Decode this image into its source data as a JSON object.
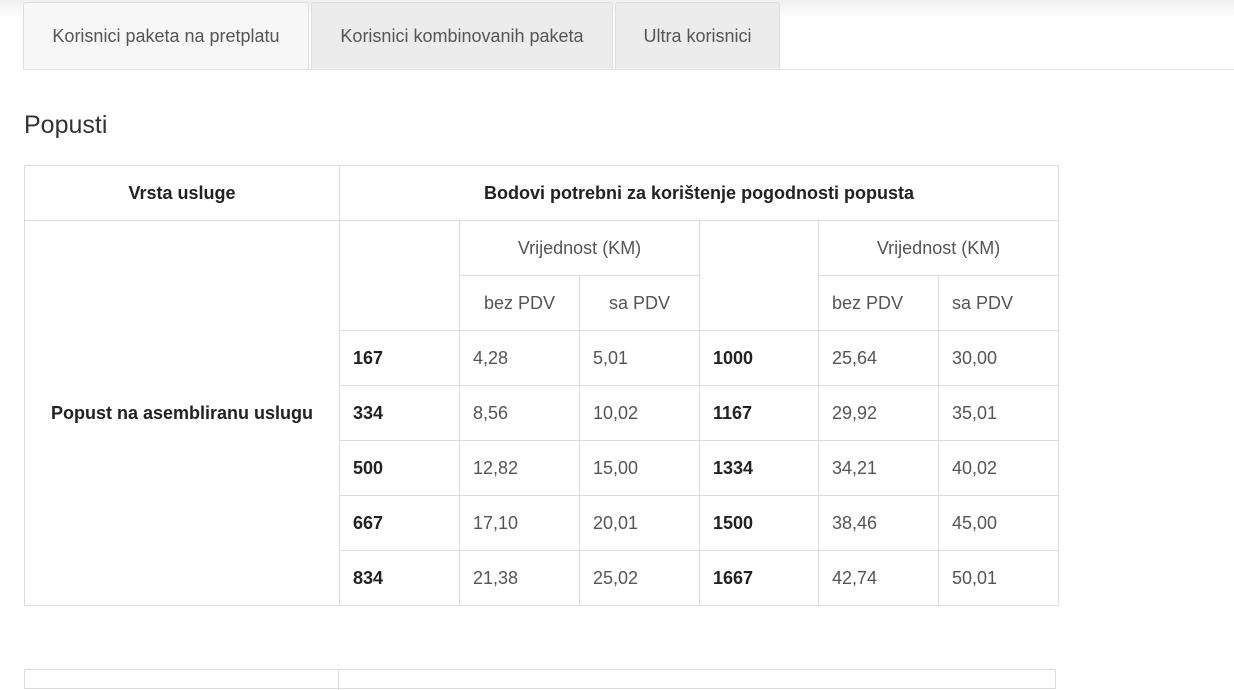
{
  "tabs": [
    {
      "label": "Korisnici paketa na pretplatu",
      "active": true
    },
    {
      "label": "Korisnici kombinovanih paketa",
      "active": false
    },
    {
      "label": "Ultra korisnici",
      "active": false
    }
  ],
  "section_title": "Popusti",
  "table": {
    "header_service": "Vrsta usluge",
    "header_points": "Bodovi potrebni za korištenje pogodnosti popusta",
    "value_group": "Vrijednost (KM)",
    "without_vat": "bez PDV",
    "with_vat": "sa PDV",
    "service_name": "Popust na asembliranu uslugu",
    "rows": [
      {
        "pts1": "167",
        "a1": "4,28",
        "b1": "5,01",
        "pts2": "1000",
        "a2": "25,64",
        "b2": "30,00"
      },
      {
        "pts1": "334",
        "a1": "8,56",
        "b1": "10,02",
        "pts2": "1167",
        "a2": "29,92",
        "b2": "35,01"
      },
      {
        "pts1": "500",
        "a1": "12,82",
        "b1": "15,00",
        "pts2": "1334",
        "a2": "34,21",
        "b2": "40,02"
      },
      {
        "pts1": "667",
        "a1": "17,10",
        "b1": "20,01",
        "pts2": "1500",
        "a2": "38,46",
        "b2": "45,00"
      },
      {
        "pts1": "834",
        "a1": "21,38",
        "b1": "25,02",
        "pts2": "1667",
        "a2": "42,74",
        "b2": "50,01"
      }
    ]
  }
}
